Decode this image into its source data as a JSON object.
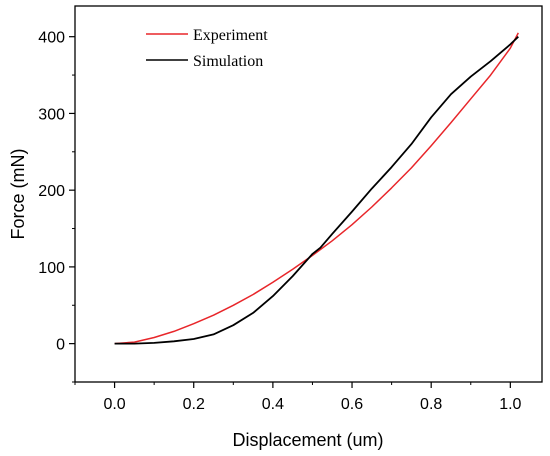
{
  "chart_data": {
    "type": "line",
    "title": "",
    "xlabel": "Displacement (um)",
    "ylabel": "Force (mN)",
    "xlim": [
      -0.1,
      1.08
    ],
    "ylim": [
      -50,
      440
    ],
    "xticks": [
      0.0,
      0.2,
      0.4,
      0.6,
      0.8,
      1.0
    ],
    "xtick_labels": [
      "0.0",
      "0.2",
      "0.4",
      "0.6",
      "0.8",
      "1.0"
    ],
    "yticks": [
      0,
      100,
      200,
      300,
      400
    ],
    "ytick_labels": [
      "0",
      "100",
      "200",
      "300",
      "400"
    ],
    "grid": false,
    "legend_position": "top-left",
    "series": [
      {
        "name": "Experiment",
        "color": "#e8262a",
        "x": [
          0.0,
          0.05,
          0.1,
          0.15,
          0.2,
          0.25,
          0.3,
          0.35,
          0.4,
          0.45,
          0.5,
          0.55,
          0.6,
          0.65,
          0.7,
          0.75,
          0.8,
          0.85,
          0.9,
          0.95,
          1.0,
          1.02
        ],
        "y": [
          0,
          2,
          8,
          16,
          26,
          37,
          50,
          64,
          80,
          97,
          115,
          134,
          155,
          178,
          203,
          229,
          258,
          288,
          319,
          350,
          385,
          405
        ]
      },
      {
        "name": "Simulation",
        "color": "#000000",
        "x": [
          0.0,
          0.05,
          0.1,
          0.15,
          0.2,
          0.25,
          0.3,
          0.35,
          0.4,
          0.45,
          0.5,
          0.52,
          0.55,
          0.6,
          0.65,
          0.7,
          0.75,
          0.8,
          0.85,
          0.9,
          0.95,
          1.0,
          1.02
        ],
        "y": [
          0,
          0,
          1,
          3,
          6,
          12,
          24,
          40,
          62,
          88,
          117,
          125,
          143,
          172,
          202,
          230,
          260,
          295,
          325,
          348,
          368,
          390,
          400
        ]
      }
    ]
  }
}
